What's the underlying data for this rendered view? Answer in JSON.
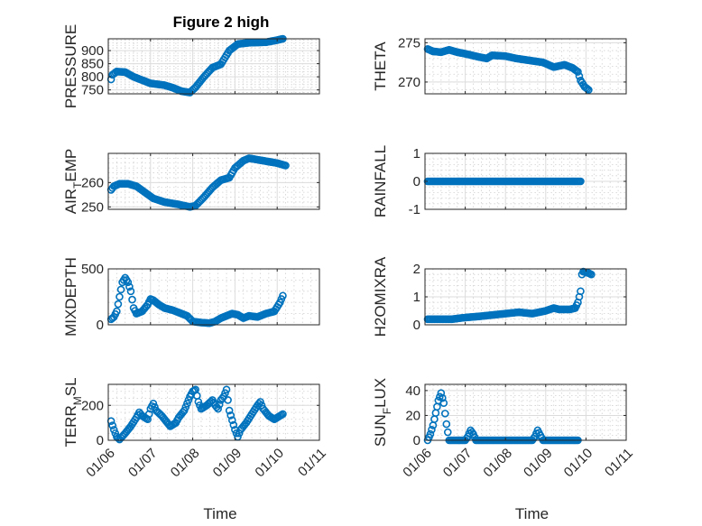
{
  "figure_title": "Figure 2 high",
  "chart_data": [
    {
      "id": "pressure",
      "type": "scatter",
      "marker": "circle",
      "color": "#0072BD",
      "title": "Figure 2 high",
      "ylabel": "PRESSURE",
      "xlabel": "",
      "ylim": [
        735,
        945
      ],
      "yticks": [
        750,
        800,
        850,
        900
      ],
      "ytick_labels": [
        "750",
        "800",
        "850",
        "900"
      ],
      "xticks": [],
      "grid": true,
      "knots": [
        [
          1.0,
          790
        ],
        [
          1.5,
          808
        ],
        [
          3,
          820
        ],
        [
          6,
          818
        ],
        [
          9,
          800
        ],
        [
          15,
          775
        ],
        [
          20,
          768
        ],
        [
          23,
          758
        ],
        [
          26,
          745
        ],
        [
          29,
          740
        ],
        [
          31,
          760
        ],
        [
          34,
          800
        ],
        [
          37,
          835
        ],
        [
          40,
          848
        ],
        [
          43,
          900
        ],
        [
          46,
          925
        ],
        [
          50,
          930
        ],
        [
          56,
          932
        ],
        [
          60,
          940
        ],
        [
          62,
          945
        ]
      ]
    },
    {
      "id": "theta",
      "type": "scatter",
      "marker": "circle",
      "color": "#0072BD",
      "ylabel": "THETA",
      "xlabel": "",
      "ylim": [
        268.5,
        275.5
      ],
      "yticks": [
        270,
        275
      ],
      "ytick_labels": [
        "270",
        "275"
      ],
      "xticks": [],
      "grid": true,
      "knots": [
        [
          1,
          274.2
        ],
        [
          3,
          273.9
        ],
        [
          6,
          273.8
        ],
        [
          9,
          274.1
        ],
        [
          12,
          273.8
        ],
        [
          15,
          273.6
        ],
        [
          20,
          273.2
        ],
        [
          23,
          273.0
        ],
        [
          25,
          273.4
        ],
        [
          30,
          273.3
        ],
        [
          34,
          273.0
        ],
        [
          40,
          272.7
        ],
        [
          44,
          272.5
        ],
        [
          48,
          271.9
        ],
        [
          52,
          272.2
        ],
        [
          55,
          271.8
        ],
        [
          57,
          271.3
        ],
        [
          58,
          270.2
        ],
        [
          59.5,
          269.4
        ],
        [
          61,
          269.0
        ]
      ]
    },
    {
      "id": "air_temp",
      "type": "scatter",
      "marker": "circle",
      "color": "#0072BD",
      "ylabel": "AIR_TEMP",
      "ylabel_main": "AIR",
      "ylabel_sub": "T",
      "ylabel_rest": "EMP",
      "xlabel": "",
      "ylim": [
        249,
        272
      ],
      "yticks": [
        250,
        260
      ],
      "ytick_labels": [
        "250",
        "260"
      ],
      "xticks": [],
      "grid": true,
      "knots": [
        [
          1,
          257
        ],
        [
          2,
          258.5
        ],
        [
          4,
          259.5
        ],
        [
          7,
          259.5
        ],
        [
          10,
          258.5
        ],
        [
          13,
          256
        ],
        [
          16,
          253.5
        ],
        [
          20,
          252
        ],
        [
          25,
          251
        ],
        [
          29,
          250.0
        ],
        [
          31,
          250.5
        ],
        [
          34,
          254
        ],
        [
          37,
          258
        ],
        [
          40,
          261
        ],
        [
          43,
          262
        ],
        [
          45,
          266
        ],
        [
          48,
          269
        ],
        [
          50,
          270
        ],
        [
          55,
          269
        ],
        [
          60,
          268
        ],
        [
          63,
          267
        ]
      ]
    },
    {
      "id": "rainfall",
      "type": "scatter",
      "marker": "circle",
      "color": "#0072BD",
      "ylabel": "RAINFALL",
      "xlabel": "",
      "ylim": [
        -1,
        1
      ],
      "yticks": [
        -1,
        0,
        1
      ],
      "ytick_labels": [
        "-1",
        "0",
        "1"
      ],
      "xticks": [],
      "grid": true,
      "knots": [
        [
          1,
          0
        ],
        [
          58,
          0
        ]
      ]
    },
    {
      "id": "mixdepth",
      "type": "scatter",
      "marker": "circle",
      "color": "#0072BD",
      "ylabel": "MIXDEPTH",
      "xlabel": "",
      "ylim": [
        0,
        500
      ],
      "yticks": [
        0,
        500
      ],
      "ytick_labels": [
        "0",
        "500"
      ],
      "xticks": [],
      "grid": true,
      "knots": [
        [
          1,
          50
        ],
        [
          2,
          70
        ],
        [
          3,
          120
        ],
        [
          4,
          250
        ],
        [
          5,
          380
        ],
        [
          6,
          420
        ],
        [
          7,
          380
        ],
        [
          8,
          300
        ],
        [
          9,
          150
        ],
        [
          10,
          100
        ],
        [
          12,
          120
        ],
        [
          14,
          180
        ],
        [
          15,
          230
        ],
        [
          16,
          220
        ],
        [
          18,
          180
        ],
        [
          20,
          150
        ],
        [
          23,
          130
        ],
        [
          25,
          110
        ],
        [
          28,
          80
        ],
        [
          30,
          30
        ],
        [
          33,
          20
        ],
        [
          36,
          15
        ],
        [
          38,
          30
        ],
        [
          40,
          60
        ],
        [
          42,
          80
        ],
        [
          44,
          100
        ],
        [
          46,
          90
        ],
        [
          48,
          60
        ],
        [
          50,
          80
        ],
        [
          53,
          70
        ],
        [
          56,
          100
        ],
        [
          59,
          120
        ],
        [
          61,
          200
        ],
        [
          62,
          260
        ]
      ]
    },
    {
      "id": "h2omixra",
      "type": "scatter",
      "marker": "circle",
      "color": "#0072BD",
      "ylabel": "H2OMIXRA",
      "xlabel": "",
      "ylim": [
        0,
        2
      ],
      "yticks": [
        0,
        1,
        2
      ],
      "ytick_labels": [
        "0",
        "1",
        "2"
      ],
      "xticks": [],
      "grid": true,
      "knots": [
        [
          1,
          0.2
        ],
        [
          10,
          0.2
        ],
        [
          14,
          0.25
        ],
        [
          20,
          0.3
        ],
        [
          25,
          0.35
        ],
        [
          30,
          0.4
        ],
        [
          35,
          0.45
        ],
        [
          40,
          0.4
        ],
        [
          45,
          0.5
        ],
        [
          48,
          0.6
        ],
        [
          50,
          0.55
        ],
        [
          54,
          0.55
        ],
        [
          56,
          0.6
        ],
        [
          57,
          0.8
        ],
        [
          58,
          1.2
        ],
        [
          58.5,
          1.8
        ],
        [
          59,
          1.9
        ],
        [
          61,
          1.85
        ],
        [
          62,
          1.8
        ]
      ]
    },
    {
      "id": "terr_msl",
      "type": "scatter",
      "marker": "circle",
      "color": "#0072BD",
      "ylabel": "TERR_MSL",
      "ylabel_main": "TERR",
      "ylabel_sub": "M",
      "ylabel_rest": "SL",
      "xlabel": "Time",
      "ylim": [
        0,
        320
      ],
      "yticks": [
        0,
        200
      ],
      "ytick_labels": [
        "0",
        "200"
      ],
      "xticks": [
        0,
        15,
        30,
        45,
        60,
        75
      ],
      "xtick_labels": [
        "01/06",
        "01/07",
        "01/08",
        "01/09",
        "01/10",
        "01/11"
      ],
      "grid": true,
      "knots": [
        [
          1,
          110
        ],
        [
          2,
          60
        ],
        [
          3,
          20
        ],
        [
          4,
          5
        ],
        [
          6,
          40
        ],
        [
          8,
          80
        ],
        [
          10,
          130
        ],
        [
          11,
          160
        ],
        [
          12,
          140
        ],
        [
          14,
          120
        ],
        [
          15,
          180
        ],
        [
          16,
          210
        ],
        [
          17,
          170
        ],
        [
          19,
          140
        ],
        [
          21,
          100
        ],
        [
          22,
          80
        ],
        [
          24,
          100
        ],
        [
          25,
          130
        ],
        [
          27,
          170
        ],
        [
          28,
          210
        ],
        [
          29,
          250
        ],
        [
          30,
          280
        ],
        [
          31,
          290
        ],
        [
          32,
          220
        ],
        [
          33,
          180
        ],
        [
          35,
          200
        ],
        [
          37,
          230
        ],
        [
          38,
          200
        ],
        [
          39,
          180
        ],
        [
          40,
          230
        ],
        [
          41,
          250
        ],
        [
          42,
          290
        ],
        [
          43,
          170
        ],
        [
          45,
          60
        ],
        [
          46,
          20
        ],
        [
          47,
          60
        ],
        [
          49,
          100
        ],
        [
          51,
          150
        ],
        [
          53,
          200
        ],
        [
          54,
          220
        ],
        [
          55,
          180
        ],
        [
          57,
          140
        ],
        [
          59,
          120
        ],
        [
          61,
          140
        ],
        [
          62,
          150
        ]
      ]
    },
    {
      "id": "sun_flux",
      "type": "scatter",
      "marker": "circle",
      "color": "#0072BD",
      "ylabel": "SUN_FLUX",
      "ylabel_main": "SUN",
      "ylabel_sub": "F",
      "ylabel_rest": "LUX",
      "xlabel": "Time",
      "ylim": [
        0,
        45
      ],
      "yticks": [
        0,
        20,
        40
      ],
      "ytick_labels": [
        "0",
        "20",
        "40"
      ],
      "xticks": [
        0,
        15,
        30,
        45,
        60,
        75
      ],
      "xtick_labels": [
        "01/06",
        "01/07",
        "01/08",
        "01/09",
        "01/10",
        "01/11"
      ],
      "grid": true,
      "knots": [
        [
          1,
          0
        ],
        [
          2,
          5
        ],
        [
          3,
          12
        ],
        [
          4,
          22
        ],
        [
          5,
          32
        ],
        [
          6,
          38
        ],
        [
          7,
          30
        ],
        [
          8,
          13
        ],
        [
          9,
          0
        ],
        [
          15,
          0
        ],
        [
          16,
          3
        ],
        [
          17,
          8
        ],
        [
          18,
          5
        ],
        [
          19,
          0
        ],
        [
          40,
          0
        ],
        [
          41,
          3
        ],
        [
          42,
          8
        ],
        [
          43,
          4
        ],
        [
          44,
          0
        ],
        [
          57,
          0
        ]
      ]
    }
  ]
}
